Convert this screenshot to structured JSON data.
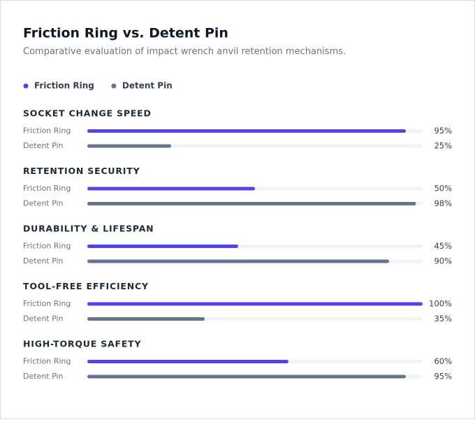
{
  "chart_data": {
    "type": "bar",
    "orientation": "horizontal",
    "title": "Friction Ring vs. Detent Pin",
    "subtitle": "Comparative evaluation of impact wrench anvil retention mechanisms.",
    "categories": [
      "SOCKET CHANGE SPEED",
      "RETENTION SECURITY",
      "DURABILITY & LIFESPAN",
      "TOOL-FREE EFFICIENCY",
      "HIGH-TORQUE SAFETY"
    ],
    "series": [
      {
        "name": "Friction Ring",
        "color": "#5146e5",
        "values": [
          95,
          50,
          45,
          100,
          60
        ],
        "value_labels": [
          "95%",
          "50%",
          "45%",
          "100%",
          "60%"
        ]
      },
      {
        "name": "Detent Pin",
        "color": "#64748b",
        "values": [
          25,
          98,
          90,
          35,
          95
        ],
        "value_labels": [
          "25%",
          "98%",
          "90%",
          "35%",
          "95%"
        ]
      }
    ],
    "xlim": [
      0,
      100
    ],
    "legend": "top-left"
  }
}
